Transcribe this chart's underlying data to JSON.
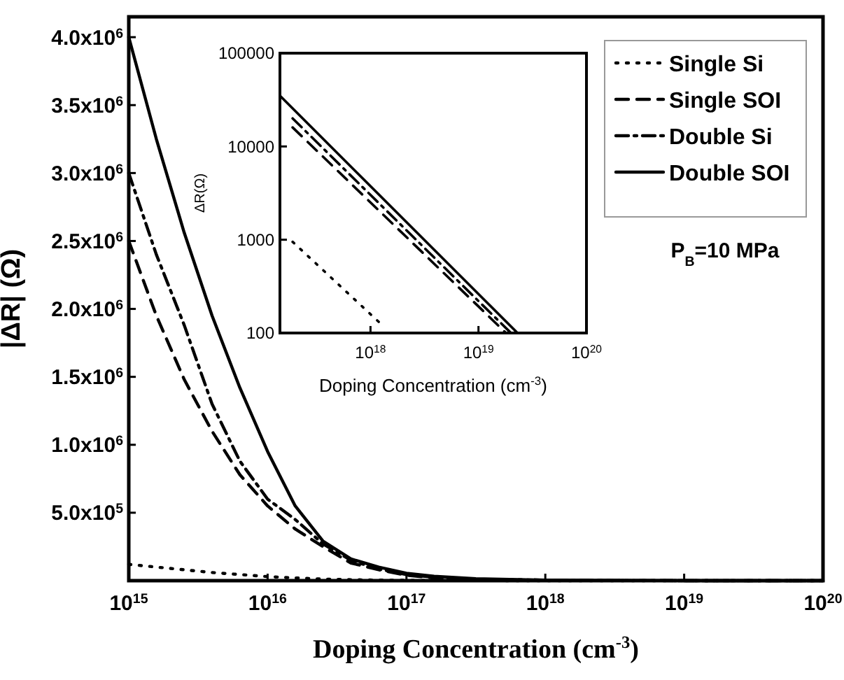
{
  "chart_data": [
    {
      "type": "line",
      "xlabel": "Doping Concentration (cm$^{-3}$)",
      "ylabel": "|ΔR| (Ω)",
      "log": "x",
      "x": [
        1000000000000000.0,
        1580000000000000.0,
        2510000000000000.0,
        3980000000000000.0,
        6310000000000000.0,
        1e+16,
        1.58e+16,
        2.51e+16,
        3.98e+16,
        6.31e+16,
        1e+17,
        1.58e+17,
        3.16e+17,
        1e+18,
        3.16e+18,
        1e+19,
        1e+20
      ],
      "series": [
        {
          "name": "Single Si",
          "color": "#000000",
          "line_style": "dotted",
          "values": [
            120000,
            100000,
            80000,
            60000,
            45000,
            30000,
            20000,
            12000,
            7000,
            4000,
            2000,
            1000,
            500,
            200,
            60,
            20,
            0
          ]
        },
        {
          "name": "Single SOI",
          "color": "#000000",
          "line_style": "dashed",
          "values": [
            2500000,
            1950000,
            1480000,
            1100000,
            780000,
            550000,
            380000,
            250000,
            130000,
            80000,
            40000,
            20000,
            9000,
            3000,
            800,
            300,
            0
          ]
        },
        {
          "name": "Double Si",
          "color": "#000000",
          "line_style": "dashdot",
          "values": [
            3000000,
            2400000,
            1880000,
            1300000,
            880000,
            600000,
            450000,
            270000,
            150000,
            85000,
            45000,
            25000,
            11000,
            3500,
            1000,
            300,
            0
          ]
        },
        {
          "name": "Double SOI",
          "color": "#000000",
          "line_style": "solid",
          "values": [
            4000000,
            3250000,
            2560000,
            1950000,
            1420000,
            950000,
            550000,
            290000,
            160000,
            100000,
            55000,
            32000,
            14000,
            4500,
            1200,
            400,
            0
          ]
        }
      ],
      "xlim": [
        1000000000000000.0,
        1e+20
      ],
      "xticks": [
        {
          "value": 1000000000000000.0,
          "label": "10$^{15}$"
        },
        {
          "value": 1e+16,
          "label": "10$^{16}$"
        },
        {
          "value": 1e+17,
          "label": "10$^{17}$"
        },
        {
          "value": 1e+18,
          "label": "10$^{18}$"
        },
        {
          "value": 1e+19,
          "label": "10$^{19}$"
        },
        {
          "value": 1e+20,
          "label": "10$^{20}$"
        }
      ],
      "ylim": [
        0,
        4150000
      ],
      "yticks": [
        {
          "value": 500000,
          "label": "5.0x10$^{5}$"
        },
        {
          "value": 1000000,
          "label": "1.0x10$^{6}$"
        },
        {
          "value": 1500000,
          "label": "1.5x10$^{6}$"
        },
        {
          "value": 2000000,
          "label": "2.0x10$^{6}$"
        },
        {
          "value": 2500000,
          "label": "2.5x10$^{6}$"
        },
        {
          "value": 3000000,
          "label": "3.0x10$^{6}$"
        },
        {
          "value": 3500000,
          "label": "3.5x10$^{6}$"
        },
        {
          "value": 4000000,
          "label": "4.0x10$^{6}$"
        }
      ],
      "legend": "top right",
      "grid": false,
      "annotations": [
        "P$_{B}$=10 MPa"
      ]
    },
    {
      "type": "line",
      "xlabel": "Doping Concentration (cm$^{-3}$)",
      "ylabel": "ΔR(Ω)",
      "log": "xy",
      "series": [
        {
          "color": "#000000",
          "line_style": "dotted",
          "x": [
            1.9e+17,
            1.3e+18
          ],
          "values": [
            950,
            120
          ]
        },
        {
          "color": "#000000",
          "line_style": "dashed",
          "x": [
            1.9e+17,
            1.8e+19
          ],
          "values": [
            16000,
            100
          ]
        },
        {
          "color": "#000000",
          "line_style": "dashdot",
          "x": [
            1.9e+17,
            2e+19
          ],
          "values": [
            20000,
            100
          ]
        },
        {
          "color": "#000000",
          "line_style": "solid",
          "x": [
            1.45e+17,
            2.3e+19
          ],
          "values": [
            35000,
            100
          ]
        }
      ],
      "xlim": [
        1.45e+17,
        1e+20
      ],
      "xticks": [
        {
          "value": 1e+18,
          "label": "10$^{18}$"
        },
        {
          "value": 1e+19,
          "label": "10$^{19}$"
        },
        {
          "value": 1e+20,
          "label": "10$^{20}$"
        }
      ],
      "ylim": [
        100,
        100000
      ],
      "yticks": [
        100,
        1000,
        10000,
        100000
      ],
      "legend": false,
      "grid": false
    }
  ]
}
